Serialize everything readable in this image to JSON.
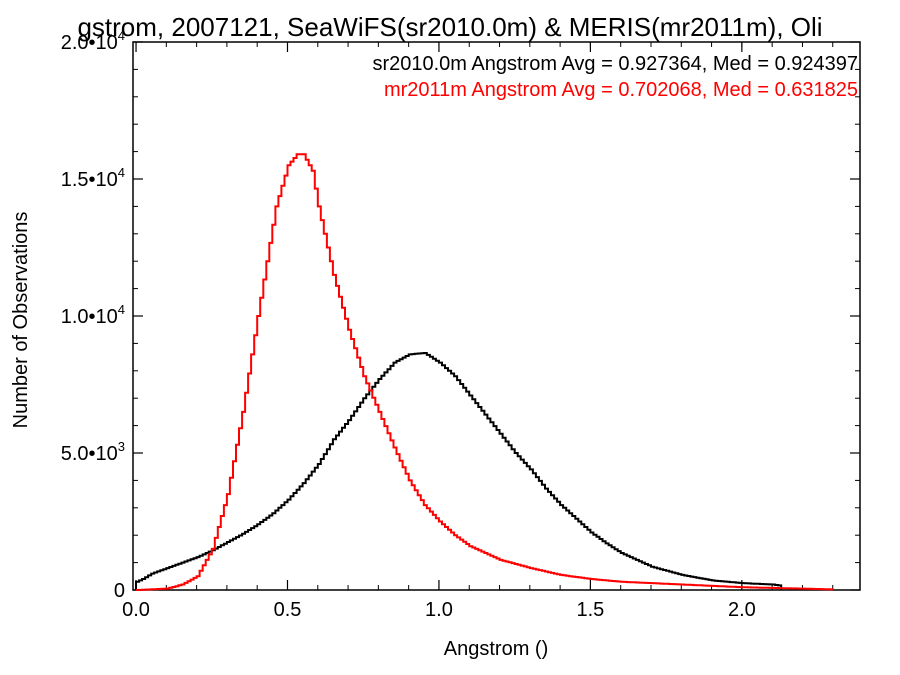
{
  "chart_data": {
    "type": "line",
    "title": "gstrom, 2007121, SeaWiFS(sr2010.0m) & MERIS(mr2011m), Oli",
    "xlabel": "Angstrom ()",
    "ylabel": "Number of Observations",
    "xlim": [
      -0.01,
      2.39
    ],
    "ylim": [
      0,
      20000
    ],
    "grid": false,
    "legend_position": "top-right",
    "x_ticks": [
      {
        "value": 0.0,
        "label": "0.0"
      },
      {
        "value": 0.5,
        "label": "0.5"
      },
      {
        "value": 1.0,
        "label": "1.0"
      },
      {
        "value": 1.5,
        "label": "1.5"
      },
      {
        "value": 2.0,
        "label": "2.0"
      }
    ],
    "y_ticks": [
      {
        "value": 0,
        "mant": "0",
        "exp": ""
      },
      {
        "value": 5000,
        "mant": "5.0•10",
        "exp": "3"
      },
      {
        "value": 10000,
        "mant": "1.0•10",
        "exp": "4"
      },
      {
        "value": 15000,
        "mant": "1.5•10",
        "exp": "4"
      },
      {
        "value": 20000,
        "mant": "2.0•10",
        "exp": "4"
      }
    ],
    "series": [
      {
        "name": "sr2010.0m Angstrom Avg = 0.927364, Med = 0.924397",
        "color": "#000000",
        "x": [
          0.0,
          0.02,
          0.05,
          0.1,
          0.15,
          0.2,
          0.25,
          0.3,
          0.35,
          0.4,
          0.45,
          0.5,
          0.55,
          0.6,
          0.65,
          0.7,
          0.75,
          0.8,
          0.85,
          0.9,
          0.95,
          1.0,
          1.05,
          1.1,
          1.15,
          1.2,
          1.25,
          1.3,
          1.35,
          1.4,
          1.45,
          1.5,
          1.55,
          1.6,
          1.7,
          1.8,
          1.9,
          2.0,
          2.1,
          2.13
        ],
        "y": [
          300,
          400,
          600,
          800,
          1000,
          1200,
          1450,
          1750,
          2050,
          2400,
          2800,
          3300,
          3900,
          4600,
          5500,
          6200,
          7000,
          7700,
          8300,
          8600,
          8650,
          8300,
          7800,
          7100,
          6400,
          5700,
          5000,
          4400,
          3700,
          3100,
          2600,
          2100,
          1700,
          1350,
          850,
          550,
          350,
          250,
          200,
          150
        ]
      },
      {
        "name": "mr2011m Angstrom Avg = 0.702068, Med = 0.631825",
        "color": "#ff0000",
        "x": [
          0.0,
          0.1,
          0.15,
          0.2,
          0.25,
          0.3,
          0.35,
          0.4,
          0.43,
          0.46,
          0.5,
          0.53,
          0.55,
          0.58,
          0.6,
          0.65,
          0.7,
          0.75,
          0.8,
          0.85,
          0.9,
          0.95,
          1.0,
          1.05,
          1.1,
          1.2,
          1.3,
          1.4,
          1.5,
          1.6,
          1.8,
          2.0,
          2.2,
          2.3
        ],
        "y": [
          0,
          50,
          200,
          500,
          1500,
          3500,
          6500,
          10000,
          12000,
          14000,
          15500,
          15900,
          15900,
          15300,
          14000,
          11500,
          9500,
          7800,
          6500,
          5200,
          4000,
          3100,
          2500,
          2000,
          1600,
          1100,
          800,
          550,
          400,
          300,
          200,
          100,
          50,
          20
        ]
      }
    ]
  }
}
